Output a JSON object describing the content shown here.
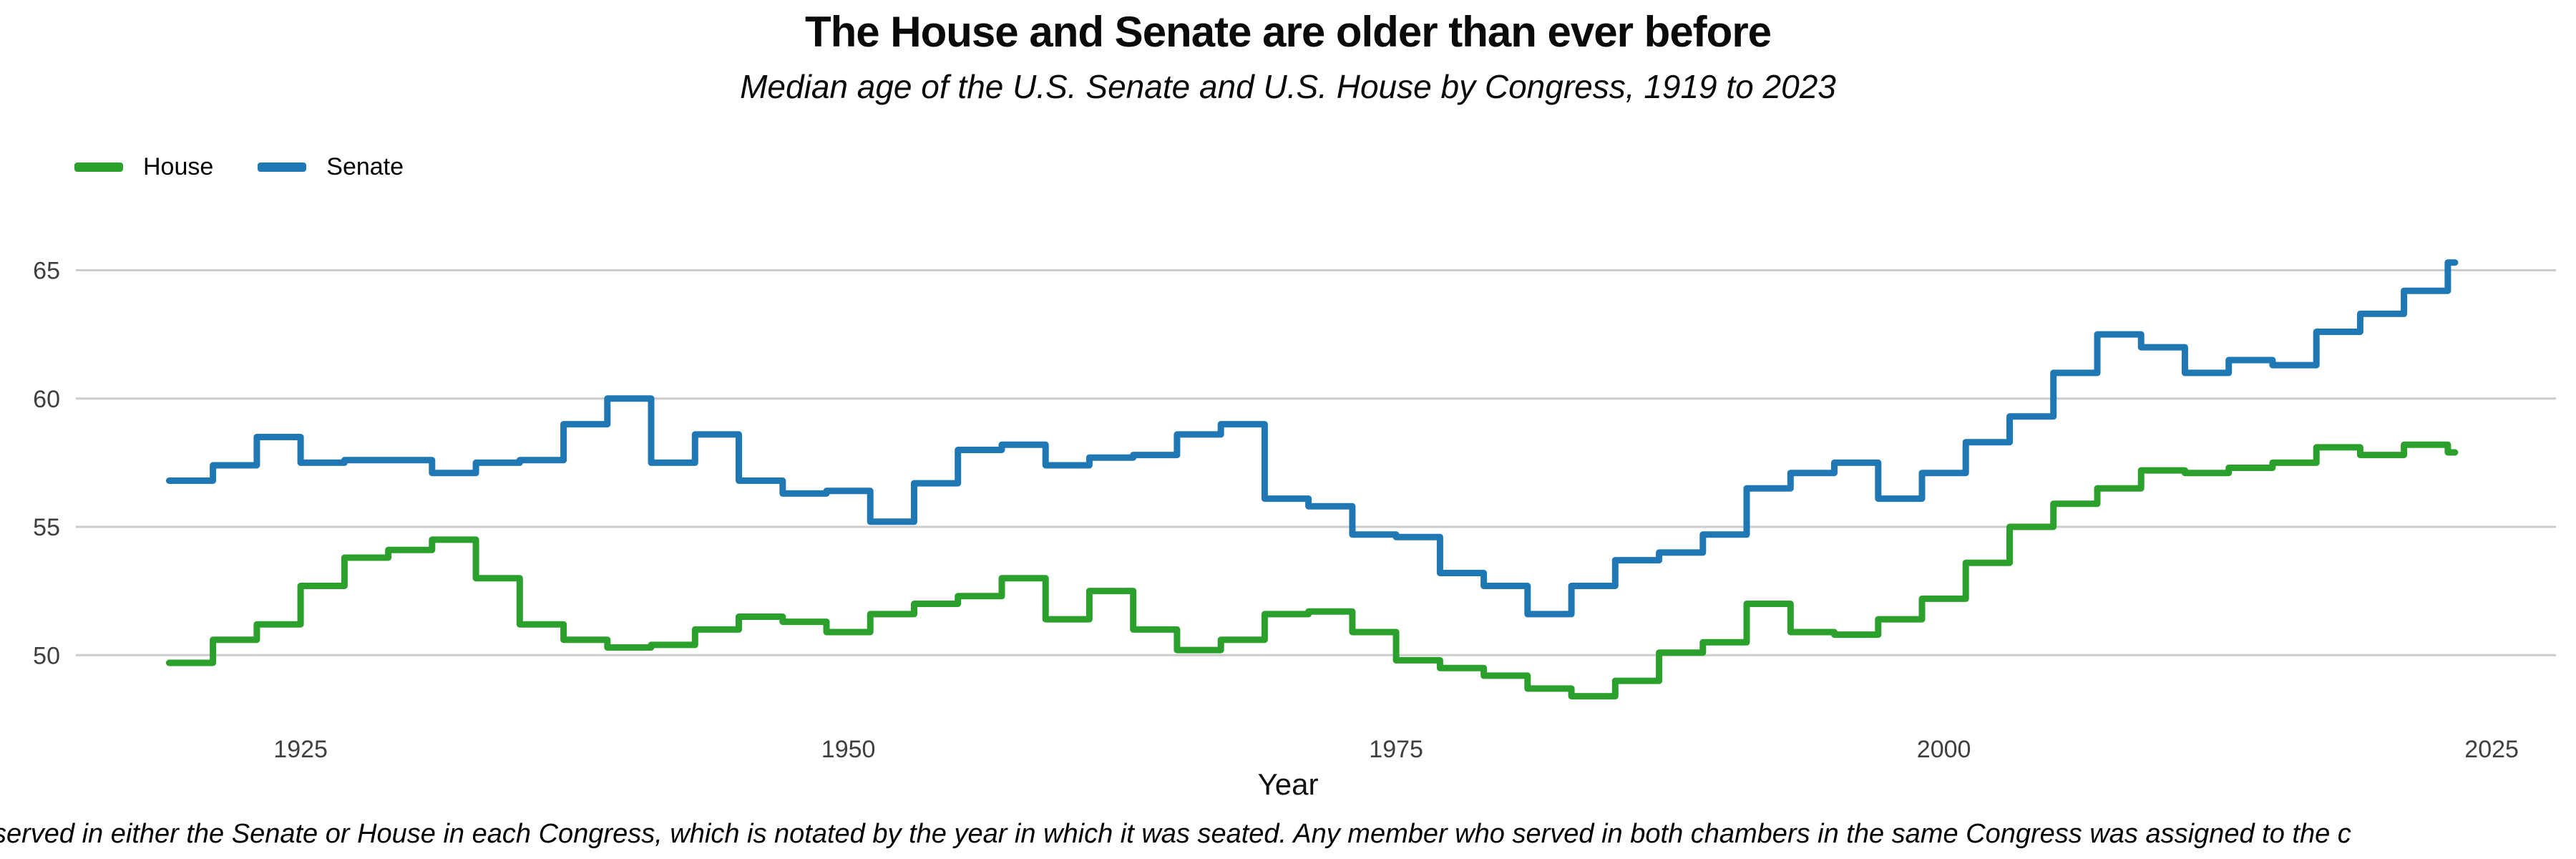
{
  "title": "The House and Senate are older than ever before",
  "subtitle": "Median age of the U.S. Senate and U.S. House by Congress, 1919 to 2023",
  "legend": {
    "house_label": "House",
    "senate_label": "Senate"
  },
  "axis": {
    "x_label": "Year"
  },
  "caption": "served in either the Senate or House in each Congress, which is notated by the year in which it was seated. Any member who served in both chambers in the same Congress was assigned to the c",
  "colors": {
    "house": "#2ca02c",
    "senate": "#1f77b4",
    "gridline": "#cccccc",
    "tick_text": "#3f3f3f"
  },
  "chart_data": {
    "type": "line",
    "step": true,
    "title": "The House and Senate are older than ever before",
    "subtitle": "Median age of the U.S. Senate and U.S. House by Congress, 1919 to 2023",
    "xlabel": "Year",
    "ylabel": "",
    "grid": "horizontal",
    "legend_position": "top-left",
    "ylim": [
      47.5,
      66.5
    ],
    "xlim": [
      1918,
      2029
    ],
    "yticks": [
      65,
      60,
      55,
      50
    ],
    "xticks": [
      1925,
      1950,
      1975,
      2000,
      2025
    ],
    "x": [
      1919,
      1921,
      1923,
      1925,
      1927,
      1929,
      1931,
      1933,
      1935,
      1937,
      1939,
      1941,
      1943,
      1945,
      1947,
      1949,
      1951,
      1953,
      1955,
      1957,
      1959,
      1961,
      1963,
      1965,
      1967,
      1969,
      1971,
      1973,
      1975,
      1977,
      1979,
      1981,
      1983,
      1985,
      1987,
      1989,
      1991,
      1993,
      1995,
      1997,
      1999,
      2001,
      2003,
      2005,
      2007,
      2009,
      2011,
      2013,
      2015,
      2017,
      2019,
      2021,
      2023
    ],
    "series": [
      {
        "name": "House",
        "color_key": "house",
        "values": [
          49.7,
          50.6,
          51.2,
          52.7,
          53.8,
          54.1,
          54.5,
          53.0,
          51.2,
          50.6,
          50.3,
          50.4,
          51.0,
          51.5,
          51.3,
          50.9,
          51.6,
          52.0,
          52.3,
          53.0,
          51.4,
          52.5,
          51.0,
          50.2,
          50.6,
          51.6,
          51.7,
          50.9,
          49.8,
          49.5,
          49.2,
          48.7,
          48.4,
          49.0,
          50.1,
          50.5,
          52.0,
          50.9,
          50.8,
          51.4,
          52.2,
          53.6,
          55.0,
          55.9,
          56.5,
          57.2,
          57.1,
          57.3,
          57.5,
          58.1,
          57.8,
          58.2,
          57.9
        ]
      },
      {
        "name": "Senate",
        "color_key": "senate",
        "values": [
          56.8,
          57.4,
          58.5,
          57.5,
          57.6,
          57.6,
          57.1,
          57.5,
          57.6,
          59.0,
          60.0,
          57.5,
          58.6,
          56.8,
          56.3,
          56.4,
          55.2,
          56.7,
          58.0,
          58.2,
          57.4,
          57.7,
          57.8,
          58.6,
          59.0,
          56.1,
          55.8,
          54.7,
          54.6,
          53.2,
          52.7,
          51.6,
          52.7,
          53.7,
          54.0,
          54.7,
          56.5,
          57.1,
          57.5,
          56.1,
          57.1,
          58.3,
          59.3,
          61.0,
          62.5,
          62.0,
          61.0,
          61.5,
          61.3,
          62.6,
          63.3,
          64.2,
          65.3
        ]
      }
    ]
  }
}
